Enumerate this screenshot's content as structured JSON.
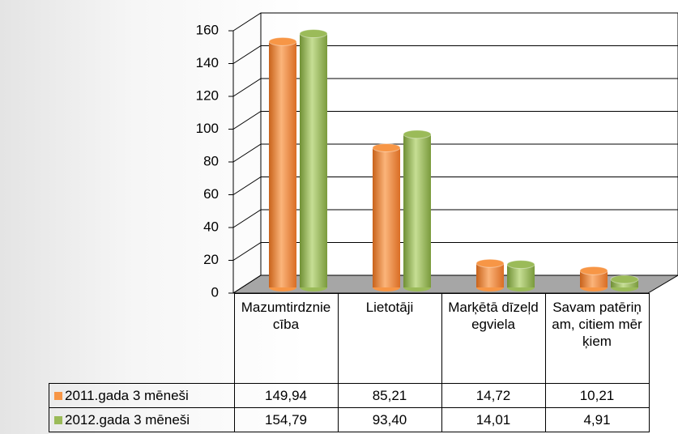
{
  "chart_data": {
    "type": "bar",
    "categories": [
      "Mazumtirdzniecība",
      "Lietotāji",
      "Marķētā dīzeļdegviela",
      "Savam patēriņam, citiem mērķiem"
    ],
    "series": [
      {
        "name": "2011.gada 3 mēneši",
        "color": "#f79646",
        "values": [
          149.94,
          85.21,
          14.72,
          10.21
        ],
        "value_labels": [
          "149,94",
          "85,21",
          "14,72",
          "10,21"
        ]
      },
      {
        "name": "2012.gada 3 mēneši",
        "color": "#9bbb59",
        "values": [
          154.79,
          93.4,
          14.01,
          4.91
        ],
        "value_labels": [
          "154,79",
          "93,40",
          "14,01",
          "4,91"
        ]
      }
    ],
    "ylim": [
      0,
      160
    ],
    "yticks": [
      0,
      20,
      40,
      60,
      80,
      100,
      120,
      140,
      160
    ],
    "grid": true
  }
}
